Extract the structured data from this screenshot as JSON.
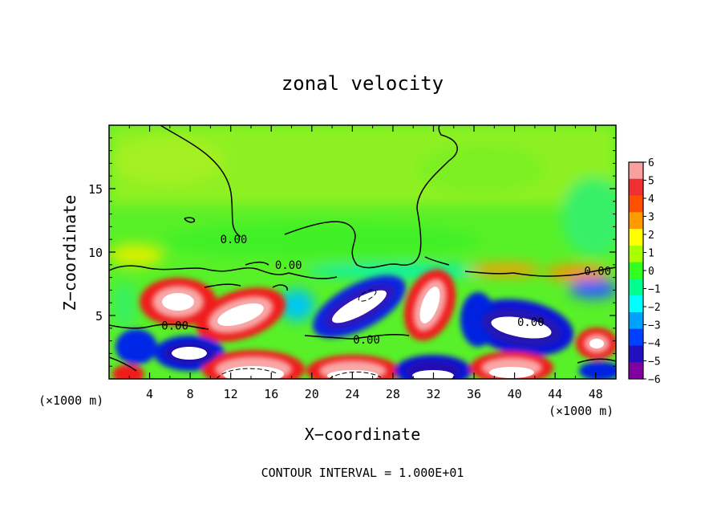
{
  "chart_data": {
    "type": "heatmap",
    "title": "zonal velocity",
    "xlabel": "X−coordinate",
    "ylabel": "Z−coordinate",
    "x_unit_left": "(×1000 m)",
    "x_unit_right": "(×1000 m)",
    "xlim": [
      0,
      50
    ],
    "ylim": [
      0,
      20
    ],
    "x_ticks": [
      4,
      8,
      12,
      16,
      20,
      24,
      28,
      32,
      36,
      40,
      44,
      48
    ],
    "y_ticks": [
      5,
      10,
      15
    ],
    "x_tick_labels": [
      "4",
      "8",
      "12",
      "16",
      "20",
      "24",
      "28",
      "32",
      "36",
      "40",
      "44",
      "48"
    ],
    "y_tick_labels": [
      "5",
      "10",
      "15"
    ],
    "colorbar_levels": [
      6,
      5,
      4,
      3,
      2,
      1,
      0,
      -1,
      -2,
      -3,
      -4,
      -5,
      -6
    ],
    "colorbar_labels": [
      "6",
      "5",
      "4",
      "3",
      "2",
      "1",
      "0",
      "−1",
      "−2",
      "−3",
      "−4",
      "−5",
      "−6"
    ],
    "colorbar_colors": [
      "#f8a0a0",
      "#f03030",
      "#ff5000",
      "#ff9a00",
      "#ffff00",
      "#a8ff00",
      "#30ff20",
      "#00ff90",
      "#00ffff",
      "#00a0ff",
      "#0040ff",
      "#2010c0",
      "#8000a0"
    ],
    "contour_labels": [
      {
        "text": "0.00",
        "x": 12.3,
        "z": 11.0
      },
      {
        "text": "0.00",
        "x": 17.7,
        "z": 9.0
      },
      {
        "text": "0.00",
        "x": 6.5,
        "z": 4.2
      },
      {
        "text": "0.00",
        "x": 25.4,
        "z": 3.1
      },
      {
        "text": "0.00",
        "x": 48.2,
        "z": 8.5
      },
      {
        "text": "0.00",
        "x": 41.6,
        "z": 4.5
      }
    ],
    "footer": "CONTOUR INTERVAL = 1.000E+01"
  }
}
